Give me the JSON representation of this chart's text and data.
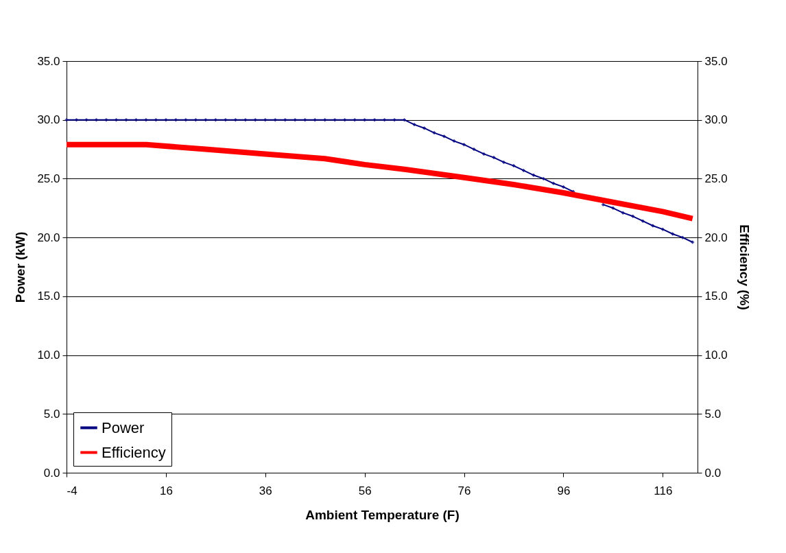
{
  "chart_data": {
    "type": "line",
    "xlabel": "Ambient Temperature (F)",
    "ylabel": "Power (kW)",
    "y2label": "Efficiency (%)",
    "xlim": [
      -4,
      123
    ],
    "xticks": [
      -4,
      16,
      36,
      56,
      76,
      96,
      116
    ],
    "ylim": [
      0,
      35
    ],
    "yticks": [
      {
        "value": 0,
        "label": "0.0"
      },
      {
        "value": 5,
        "label": "5.0"
      },
      {
        "value": 10,
        "label": "10.0"
      },
      {
        "value": 15,
        "label": "15.0"
      },
      {
        "value": 20,
        "label": "20.0"
      },
      {
        "value": 25,
        "label": "25.0"
      },
      {
        "value": 30,
        "label": "30.0"
      },
      {
        "value": 35,
        "label": "35.0"
      }
    ],
    "y2lim": [
      0,
      35
    ],
    "y2ticks": [
      {
        "value": 0,
        "label": "0.0"
      },
      {
        "value": 5,
        "label": "5.0"
      },
      {
        "value": 10,
        "label": "10.0"
      },
      {
        "value": 15,
        "label": "15.0"
      },
      {
        "value": 20,
        "label": "20.0"
      },
      {
        "value": 25,
        "label": "25.0"
      },
      {
        "value": 30,
        "label": "30.0"
      },
      {
        "value": 35,
        "label": "35.0"
      }
    ],
    "grid": "y",
    "legend": "bottom left",
    "series": [
      {
        "name": "Power",
        "color": "#000080",
        "marker": "diamond",
        "x": [
          -4,
          -2,
          0,
          2,
          4,
          6,
          8,
          10,
          12,
          14,
          16,
          18,
          20,
          22,
          24,
          26,
          28,
          30,
          32,
          34,
          36,
          38,
          40,
          42,
          44,
          46,
          48,
          50,
          52,
          54,
          56,
          58,
          60,
          62,
          64,
          66,
          68,
          70,
          72,
          74,
          76,
          78,
          80,
          82,
          84,
          86,
          88,
          90,
          92,
          94,
          96,
          98,
          100,
          102,
          104,
          106,
          108,
          110,
          112,
          114,
          116,
          118,
          120,
          122
        ],
        "values": [
          30,
          30,
          30,
          30,
          30,
          30,
          30,
          30,
          30,
          30,
          30,
          30,
          30,
          30,
          30,
          30,
          30,
          30,
          30,
          30,
          30,
          30,
          30,
          30,
          30,
          30,
          30,
          30,
          30,
          30,
          30,
          30,
          30,
          30,
          30,
          29.6,
          29.3,
          28.9,
          28.6,
          28.2,
          27.9,
          27.5,
          27.1,
          26.8,
          26.4,
          26.1,
          25.7,
          25.3,
          25.0,
          24.6,
          24.3,
          23.9,
          null,
          null,
          22.8,
          22.5,
          22.1,
          21.8,
          21.4,
          21.0,
          20.7,
          20.3,
          20.0,
          19.6
        ]
      },
      {
        "name": "Efficiency",
        "color": "#ff0000",
        "axis": "y2",
        "x": [
          -4,
          12,
          24,
          36,
          48,
          56,
          64,
          76,
          86,
          96,
          106,
          116,
          122
        ],
        "values": [
          27.9,
          27.9,
          27.5,
          27.1,
          26.7,
          26.2,
          25.8,
          25.1,
          24.5,
          23.8,
          23.0,
          22.2,
          21.6
        ]
      }
    ]
  }
}
